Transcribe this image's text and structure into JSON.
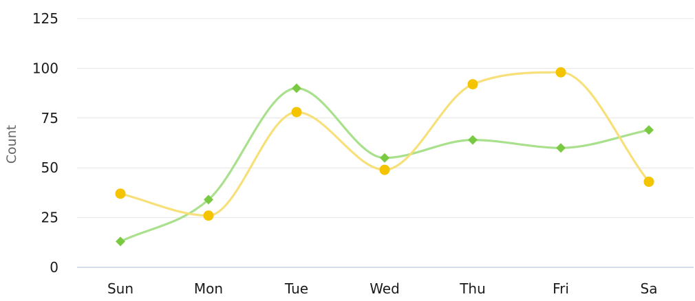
{
  "chart_data": {
    "type": "line",
    "title": "",
    "xlabel": "",
    "ylabel": "Count",
    "categories": [
      "Sun",
      "Mon",
      "Tue",
      "Wed",
      "Thu",
      "Fri",
      "Sa"
    ],
    "ylim": [
      0,
      125
    ],
    "yticks": [
      0,
      25,
      50,
      75,
      100,
      125
    ],
    "grid": true,
    "smooth": true,
    "series": [
      {
        "values": [
          13,
          34,
          90,
          55,
          64,
          60,
          69
        ],
        "color": "#a8e08c",
        "marker_color": "#7ac943",
        "marker": "diamond"
      },
      {
        "values": [
          37,
          26,
          78,
          49,
          92,
          98,
          43
        ],
        "color": "#f7e07a",
        "marker_color": "#f5c400",
        "marker": "circle"
      }
    ]
  }
}
